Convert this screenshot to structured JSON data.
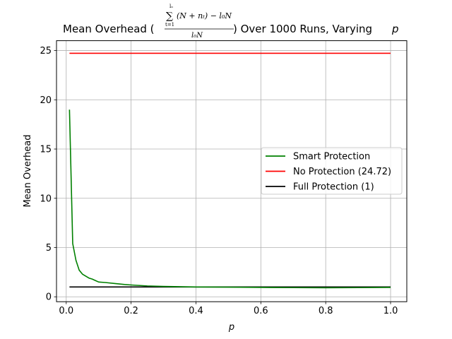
{
  "chart_data": {
    "type": "line",
    "title": {
      "prefix": "Mean Overhead (",
      "suffix": ") Over 1000 Runs, Varying ",
      "var": "p",
      "formula_sum_symbol": "∑",
      "formula_upper_limit": "lₒ",
      "formula_lower_limit": "t=1",
      "formula_numerator": "(N + nₜ) − l₀N",
      "formula_denominator": "l₀N"
    },
    "xlabel": "p",
    "ylabel": "Mean Overhead",
    "xlim": [
      -0.03,
      1.05
    ],
    "ylim": [
      -0.5,
      26
    ],
    "xticks": [
      0.0,
      0.2,
      0.4,
      0.6,
      0.8,
      1.0
    ],
    "xtick_labels": [
      "0.0",
      "0.2",
      "0.4",
      "0.6",
      "0.8",
      "1.0"
    ],
    "yticks": [
      0,
      5,
      10,
      15,
      20,
      25
    ],
    "ytick_labels": [
      "0",
      "5",
      "10",
      "15",
      "20",
      "25"
    ],
    "grid": true,
    "legend_position": "center-right",
    "series": [
      {
        "name": "Smart Protection",
        "color": "#008000",
        "x": [
          0.01,
          0.02,
          0.03,
          0.04,
          0.05,
          0.06,
          0.07,
          0.08,
          0.09,
          0.1,
          0.12,
          0.15,
          0.18,
          0.2,
          0.25,
          0.3,
          0.4,
          0.5,
          0.6,
          0.7,
          0.8,
          0.9,
          1.0
        ],
        "y": [
          19.0,
          5.4,
          3.7,
          2.7,
          2.3,
          2.1,
          1.9,
          1.8,
          1.65,
          1.5,
          1.45,
          1.35,
          1.25,
          1.2,
          1.1,
          1.05,
          1.0,
          0.98,
          0.95,
          0.93,
          0.92,
          0.93,
          0.95
        ]
      },
      {
        "name": "No Protection (24.72)",
        "color": "#ff0000",
        "x": [
          0.01,
          1.0
        ],
        "y": [
          24.72,
          24.72
        ]
      },
      {
        "name": "Full Protection (1)",
        "color": "#000000",
        "x": [
          0.01,
          1.0
        ],
        "y": [
          1,
          1
        ]
      }
    ]
  }
}
